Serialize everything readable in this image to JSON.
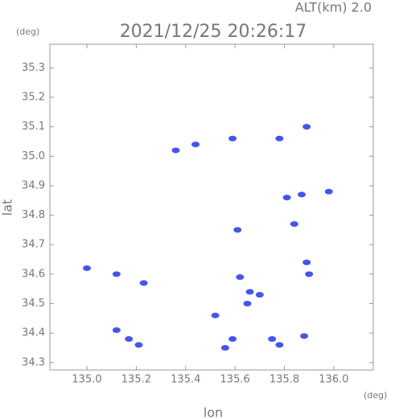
{
  "chart_data": {
    "type": "scatter",
    "title": "2021/12/25 20:26:17",
    "altitude_label": "ALT(km)  2.0",
    "y_unit": "(deg)",
    "x_unit": "(deg)",
    "xlabel": "lon",
    "ylabel": "lat",
    "color": "#4455ee",
    "x": [
      135.0,
      135.12,
      135.23,
      135.12,
      135.17,
      135.21,
      135.36,
      135.44,
      135.59,
      135.78,
      135.89,
      135.98,
      135.81,
      135.87,
      135.84,
      135.61,
      135.89,
      135.9,
      135.62,
      135.66,
      135.65,
      135.7,
      135.52,
      135.59,
      135.75,
      135.88,
      135.56,
      135.78
    ],
    "values": [
      34.62,
      34.6,
      34.57,
      34.41,
      34.38,
      34.36,
      35.02,
      35.04,
      35.06,
      35.06,
      35.1,
      34.88,
      34.86,
      34.87,
      34.77,
      34.75,
      34.64,
      34.6,
      34.59,
      34.54,
      34.5,
      34.53,
      34.46,
      34.38,
      34.38,
      34.39,
      34.35,
      34.36
    ],
    "xlim": [
      134.85,
      136.16
    ],
    "ylim": [
      34.275,
      35.38
    ],
    "xticks": [
      {
        "value": 135.0,
        "label": "135.0"
      },
      135.2,
      135.4,
      135.6,
      135.8,
      {
        "value": 136.0,
        "label": "136.0"
      }
    ],
    "yticks": [
      34.3,
      34.4,
      34.5,
      34.6,
      34.7,
      34.8,
      34.9,
      {
        "value": 35.0,
        "label": "35.0"
      },
      35.1,
      35.2,
      35.3
    ]
  }
}
